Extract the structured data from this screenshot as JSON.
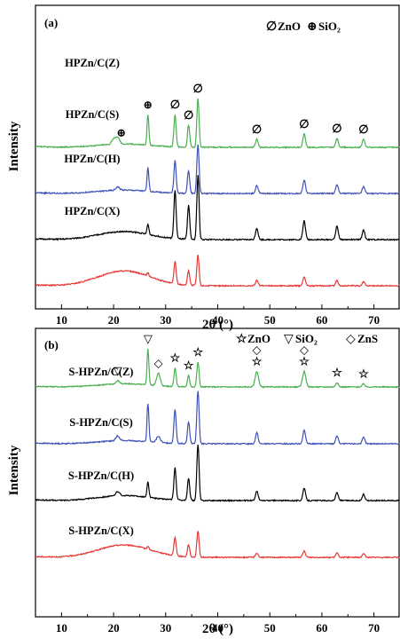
{
  "chart_data": [
    {
      "type": "line",
      "panel_label": "(a)",
      "xlabel": "2θ (°)",
      "ylabel": "Intensity",
      "xlim": [
        5,
        75
      ],
      "xticks": [
        10,
        20,
        30,
        40,
        50,
        60,
        70
      ],
      "grid": false,
      "legend": [
        {
          "symbol": "∅",
          "label": "ZnO"
        },
        {
          "symbol": "⊕",
          "label": "SiO₂"
        }
      ],
      "series": [
        {
          "name": "HPZn/C(Z)",
          "color": "#4caf50",
          "offset": 3,
          "hump": 0.05,
          "peaks": [
            [
              20.0,
              0.08,
              0.5
            ],
            [
              20.8,
              0.1,
              0.5
            ],
            [
              26.6,
              0.45,
              0.25
            ],
            [
              31.8,
              0.48,
              0.3
            ],
            [
              34.4,
              0.33,
              0.3
            ],
            [
              36.2,
              0.72,
              0.3
            ],
            [
              47.5,
              0.12,
              0.35
            ],
            [
              56.6,
              0.2,
              0.35
            ],
            [
              62.9,
              0.13,
              0.35
            ],
            [
              68.0,
              0.12,
              0.35
            ]
          ]
        },
        {
          "name": "HPZn/C(S)",
          "color": "#3f51b5",
          "offset": 2,
          "hump": 0.05,
          "peaks": [
            [
              20.8,
              0.05,
              0.5
            ],
            [
              26.6,
              0.35,
              0.25
            ],
            [
              31.8,
              0.48,
              0.3
            ],
            [
              34.4,
              0.33,
              0.3
            ],
            [
              36.2,
              0.72,
              0.3
            ],
            [
              47.5,
              0.12,
              0.35
            ],
            [
              56.6,
              0.2,
              0.35
            ],
            [
              62.9,
              0.13,
              0.35
            ],
            [
              68.0,
              0.1,
              0.35
            ]
          ]
        },
        {
          "name": "HPZn/C(H)",
          "color": "#000000",
          "offset": 1,
          "hump": 0.12,
          "peaks": [
            [
              26.6,
              0.15,
              0.25
            ],
            [
              31.8,
              0.72,
              0.3
            ],
            [
              34.4,
              0.5,
              0.3
            ],
            [
              36.2,
              0.95,
              0.3
            ],
            [
              47.5,
              0.17,
              0.35
            ],
            [
              56.6,
              0.28,
              0.35
            ],
            [
              62.9,
              0.2,
              0.35
            ],
            [
              68.0,
              0.14,
              0.35
            ]
          ]
        },
        {
          "name": "HPZn/C(X)",
          "color": "#e53935",
          "offset": 0,
          "hump": 0.22,
          "peaks": [
            [
              26.6,
              0.05,
              0.25
            ],
            [
              31.8,
              0.33,
              0.3
            ],
            [
              34.4,
              0.22,
              0.3
            ],
            [
              36.2,
              0.45,
              0.3
            ],
            [
              47.5,
              0.08,
              0.35
            ],
            [
              56.6,
              0.13,
              0.35
            ],
            [
              62.9,
              0.08,
              0.35
            ],
            [
              68.0,
              0.06,
              0.35
            ]
          ]
        }
      ],
      "annotations": [
        {
          "symbol": "⊕",
          "x": 21.5,
          "series": "HPZn/C(Z)"
        },
        {
          "symbol": "⊕",
          "x": 26.6,
          "series": "HPZn/C(Z)"
        },
        {
          "symbol": "∅",
          "x": 31.8,
          "series": "HPZn/C(Z)"
        },
        {
          "symbol": "∅",
          "x": 34.4,
          "series": "HPZn/C(Z)"
        },
        {
          "symbol": "∅",
          "x": 36.2,
          "series": "HPZn/C(Z)"
        },
        {
          "symbol": "∅",
          "x": 47.5,
          "series": "HPZn/C(Z)"
        },
        {
          "symbol": "∅",
          "x": 56.6,
          "series": "HPZn/C(Z)"
        },
        {
          "symbol": "∅",
          "x": 62.9,
          "series": "HPZn/C(Z)"
        },
        {
          "symbol": "∅",
          "x": 68.0,
          "series": "HPZn/C(Z)"
        }
      ]
    },
    {
      "type": "line",
      "panel_label": "(b)",
      "xlabel": "2θ (°)",
      "ylabel": "Intensity",
      "xlim": [
        5,
        75
      ],
      "xticks": [
        10,
        20,
        30,
        40,
        50,
        60,
        70
      ],
      "grid": false,
      "legend": [
        {
          "symbol": "☆",
          "label": "ZnO"
        },
        {
          "symbol": "▽",
          "label": "SiO₂"
        },
        {
          "symbol": "◇",
          "label": "ZnS"
        }
      ],
      "series": [
        {
          "name": "S-HPZn/C(Z)",
          "color": "#4caf50",
          "offset": 3,
          "hump": 0.05,
          "peaks": [
            [
              20.8,
              0.05,
              0.5
            ],
            [
              26.6,
              0.58,
              0.25
            ],
            [
              28.6,
              0.2,
              0.5
            ],
            [
              31.8,
              0.3,
              0.3
            ],
            [
              34.4,
              0.18,
              0.3
            ],
            [
              36.2,
              0.4,
              0.3
            ],
            [
              47.5,
              0.25,
              0.45
            ],
            [
              56.6,
              0.25,
              0.45
            ],
            [
              62.9,
              0.07,
              0.35
            ],
            [
              68.0,
              0.05,
              0.35
            ]
          ]
        },
        {
          "name": "S-HPZn/C(S)",
          "color": "#3f51b5",
          "offset": 2,
          "hump": 0.05,
          "peaks": [
            [
              20.8,
              0.08,
              0.5
            ],
            [
              26.6,
              0.62,
              0.25
            ],
            [
              28.6,
              0.1,
              0.5
            ],
            [
              31.8,
              0.55,
              0.3
            ],
            [
              34.4,
              0.35,
              0.3
            ],
            [
              36.2,
              0.85,
              0.3
            ],
            [
              47.5,
              0.18,
              0.35
            ],
            [
              56.6,
              0.22,
              0.35
            ],
            [
              62.9,
              0.13,
              0.35
            ],
            [
              68.0,
              0.1,
              0.35
            ]
          ]
        },
        {
          "name": "S-HPZn/C(H)",
          "color": "#000000",
          "offset": 1,
          "hump": 0.08,
          "peaks": [
            [
              20.8,
              0.07,
              0.5
            ],
            [
              26.6,
              0.25,
              0.25
            ],
            [
              31.8,
              0.52,
              0.3
            ],
            [
              34.4,
              0.35,
              0.3
            ],
            [
              36.2,
              0.9,
              0.3
            ],
            [
              47.5,
              0.15,
              0.35
            ],
            [
              56.6,
              0.2,
              0.35
            ],
            [
              62.9,
              0.13,
              0.35
            ],
            [
              68.0,
              0.1,
              0.35
            ]
          ]
        },
        {
          "name": "S-HPZn/C(X)",
          "color": "#e53935",
          "offset": 0,
          "hump": 0.2,
          "peaks": [
            [
              26.6,
              0.05,
              0.25
            ],
            [
              31.8,
              0.3,
              0.3
            ],
            [
              34.4,
              0.2,
              0.3
            ],
            [
              36.2,
              0.42,
              0.3
            ],
            [
              47.5,
              0.07,
              0.35
            ],
            [
              56.6,
              0.1,
              0.35
            ],
            [
              62.9,
              0.07,
              0.35
            ],
            [
              68.0,
              0.06,
              0.35
            ]
          ]
        }
      ],
      "annotations": [
        {
          "symbol": "▽",
          "x": 20.8,
          "series": "S-HPZn/C(Z)"
        },
        {
          "symbol": "▽",
          "x": 26.6,
          "series": "S-HPZn/C(Z)"
        },
        {
          "symbol": "◇",
          "x": 28.6,
          "series": "S-HPZn/C(Z)"
        },
        {
          "symbol": "☆",
          "x": 31.8,
          "series": "S-HPZn/C(Z)"
        },
        {
          "symbol": "☆",
          "x": 34.4,
          "series": "S-HPZn/C(Z)"
        },
        {
          "symbol": "☆",
          "x": 36.2,
          "series": "S-HPZn/C(Z)"
        },
        {
          "symbol": "◇",
          "x": 47.5,
          "series": "S-HPZn/C(Z)",
          "stack": 2
        },
        {
          "symbol": "☆",
          "x": 47.5,
          "series": "S-HPZn/C(Z)"
        },
        {
          "symbol": "◇",
          "x": 56.6,
          "series": "S-HPZn/C(Z)",
          "stack": 2
        },
        {
          "symbol": "☆",
          "x": 56.6,
          "series": "S-HPZn/C(Z)"
        },
        {
          "symbol": "☆",
          "x": 62.9,
          "series": "S-HPZn/C(Z)"
        },
        {
          "symbol": "☆",
          "x": 68.0,
          "series": "S-HPZn/C(Z)"
        }
      ]
    }
  ]
}
